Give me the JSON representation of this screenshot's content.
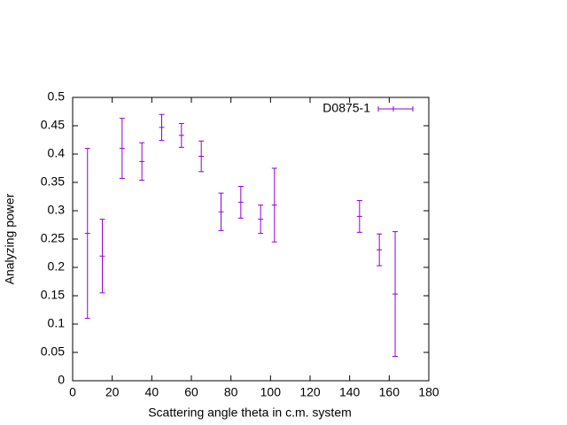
{
  "chart_data": {
    "type": "errorbar",
    "xlabel": "Scattering angle theta in c.m. system",
    "ylabel": "Analyzing power",
    "series": [
      {
        "name": "D0875-1",
        "color": "#9400d3",
        "x": [
          7.5,
          15,
          25,
          35,
          45,
          55,
          65,
          75,
          85,
          95,
          102,
          145,
          155,
          163
        ],
        "values": [
          0.26,
          0.22,
          0.41,
          0.387,
          0.447,
          0.433,
          0.396,
          0.298,
          0.315,
          0.285,
          0.31,
          0.29,
          0.231,
          0.153
        ],
        "errors": [
          0.15,
          0.065,
          0.053,
          0.033,
          0.023,
          0.021,
          0.027,
          0.033,
          0.028,
          0.025,
          0.065,
          0.028,
          0.028,
          0.11
        ]
      }
    ],
    "xlim": [
      0,
      180
    ],
    "xticks": [
      0,
      20,
      40,
      60,
      80,
      100,
      120,
      140,
      160,
      180
    ],
    "ylim": [
      0,
      0.5
    ],
    "yticks": [
      0,
      0.05,
      0.1,
      0.15,
      0.2,
      0.25,
      0.3,
      0.35,
      0.4,
      0.45,
      0.5
    ],
    "legend": "top-right"
  }
}
